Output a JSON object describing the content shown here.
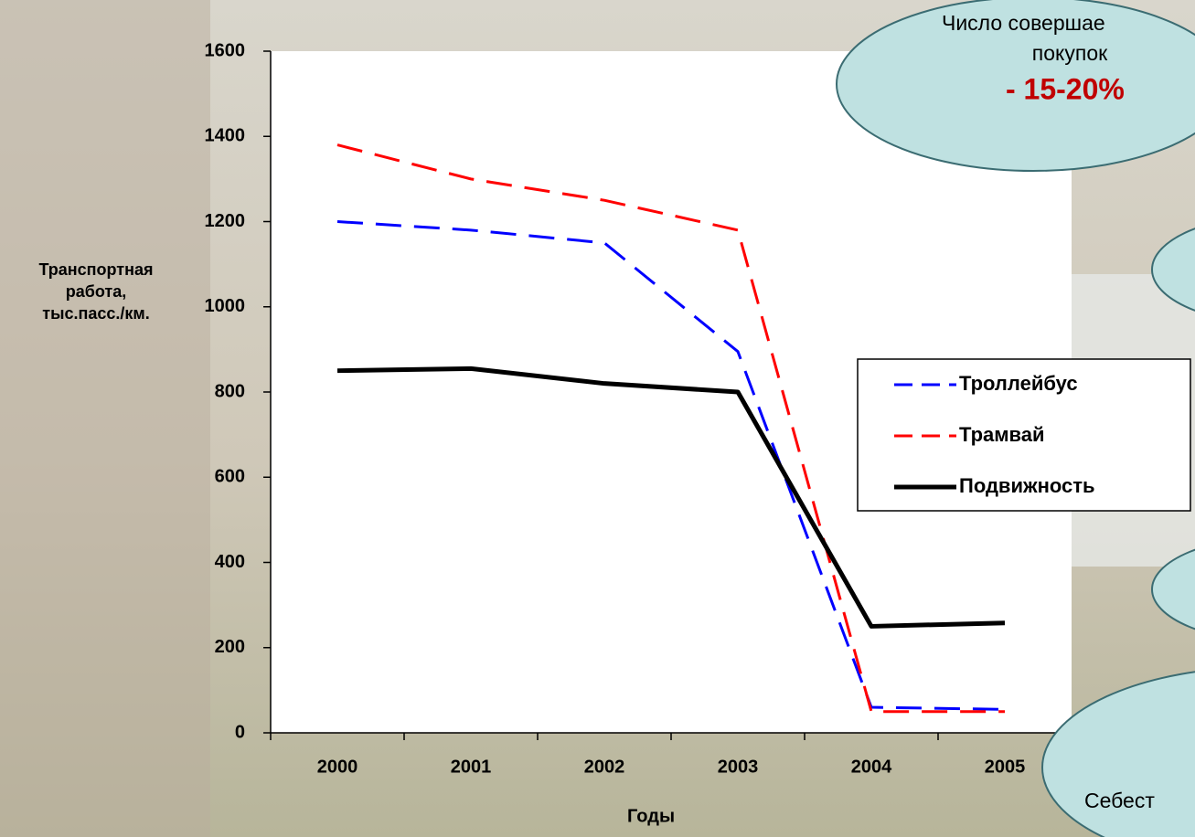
{
  "chart_data": {
    "type": "line",
    "y_label": [
      "Транспортная",
      "работа,",
      "тыс.пасс./км."
    ],
    "x_label": "Годы",
    "categories": [
      "2000",
      "2001",
      "2002",
      "2003",
      "2004",
      "2005"
    ],
    "series": [
      {
        "name": "Троллейбус",
        "color": "#0000ff",
        "style": "dashed",
        "values": [
          1200,
          1180,
          1150,
          895,
          60,
          55
        ]
      },
      {
        "name": "Трамвай",
        "color": "#ff0000",
        "style": "dashed",
        "values": [
          1380,
          1300,
          1250,
          1180,
          50,
          50
        ]
      },
      {
        "name": "Подвижность",
        "color": "#000000",
        "style": "solid",
        "values": [
          850,
          855,
          820,
          800,
          250,
          258
        ]
      }
    ],
    "ylim": [
      0,
      1600
    ],
    "yticks": [
      0,
      200,
      400,
      600,
      800,
      1000,
      1200,
      1400,
      1600
    ],
    "legend": "right"
  },
  "callouts": [
    {
      "lines": [
        "Число совершае",
        "покупок"
      ],
      "highlight": "- 15-20%"
    },
    {
      "lines": [
        "Себест"
      ]
    }
  ]
}
